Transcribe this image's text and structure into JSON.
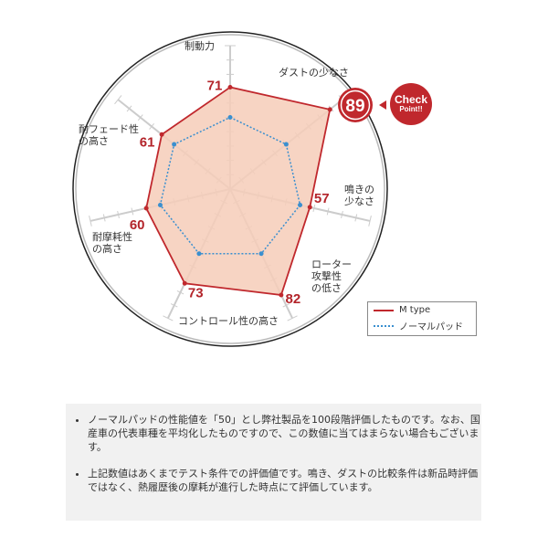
{
  "chart_data": {
    "type": "radar",
    "axes": [
      "制動力",
      "ダストの少なさ",
      "鳴きの\n少なさ",
      "ローター\n攻撃性\nの低さ",
      "コントロール性の高さ",
      "耐摩耗性\nの高さ",
      "耐フェード性\nの高さ"
    ],
    "rlim": [
      0,
      100
    ],
    "series": [
      {
        "name": "M type",
        "values": [
          71,
          89,
          57,
          82,
          73,
          60,
          61
        ],
        "color": "#c0282d",
        "fill": "#f6cdb8"
      },
      {
        "name": "ノーマルパッド",
        "values": [
          50,
          50,
          50,
          50,
          50,
          50,
          50
        ],
        "color": "#3a8fcf"
      }
    ],
    "value_labels": [
      "71",
      "89",
      "57",
      "82",
      "73",
      "60",
      "61"
    ],
    "legend": "bottom-right"
  },
  "badge": {
    "line1": "Check",
    "line2": "Point!!",
    "color": "#c0282d"
  },
  "notes": [
    "ノーマルパッドの性能値を「50」とし弊社製品を100段階評価したものです。なお、国産車の代表車種を平均化したものですので、この数値に当てはまらない場合もございます。",
    "上記数値はあくまでテスト条件での評価値です。鳴き、ダストの比較条件は新品時評価ではなく、熱履歴後の摩耗が進行した時点にて評価しています。"
  ]
}
